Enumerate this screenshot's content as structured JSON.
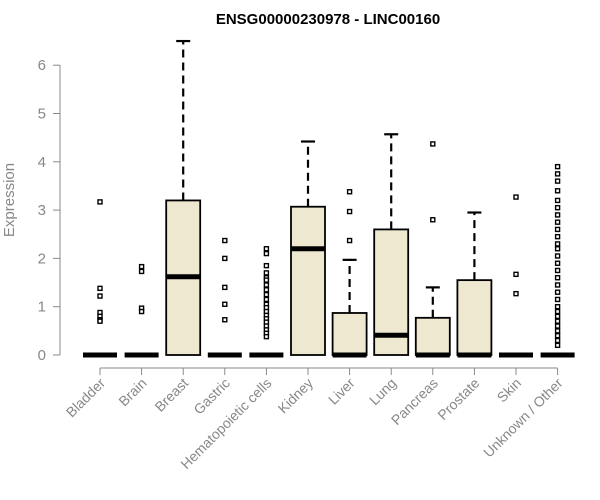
{
  "chart_data": {
    "type": "boxplot",
    "title": "ENSG00000230978 - LINC00160",
    "xlabel": "",
    "ylabel": "Expression",
    "ylim": [
      0,
      6.5
    ],
    "yticks": [
      0,
      1,
      2,
      3,
      4,
      5,
      6
    ],
    "grid": false,
    "box_fill": "#EFE8D0",
    "box_stroke": "#000000",
    "axis_color": "#888888",
    "categories": [
      "Bladder",
      "Brain",
      "Breast",
      "Gastric",
      "Hematopoietic cells",
      "Kidney",
      "Liver",
      "Lung",
      "Pancreas",
      "Prostate",
      "Skin",
      "Unknown / Other"
    ],
    "boxes": [
      {
        "category": "Bladder",
        "min": 0,
        "q1": 0,
        "median": 0,
        "q3": 0,
        "max": 0,
        "outliers": [
          3.17,
          1.38,
          1.22,
          0.88,
          0.8,
          0.73,
          0.7
        ]
      },
      {
        "category": "Brain",
        "min": 0,
        "q1": 0,
        "median": 0,
        "q3": 0,
        "max": 0,
        "outliers": [
          1.83,
          1.73,
          0.97,
          0.9
        ]
      },
      {
        "category": "Breast",
        "min": 0,
        "q1": 0,
        "median": 1.62,
        "q3": 3.2,
        "max": 6.5,
        "outliers": []
      },
      {
        "category": "Gastric",
        "min": 0,
        "q1": 0,
        "median": 0,
        "q3": 0,
        "max": 0,
        "outliers": [
          2.37,
          2.0,
          1.4,
          1.05,
          0.73
        ]
      },
      {
        "category": "Hematopoietic cells",
        "min": 0,
        "q1": 0,
        "median": 0,
        "q3": 0,
        "max": 0,
        "outliers": [
          2.2,
          2.1,
          1.85,
          1.7,
          1.6,
          1.55,
          1.45,
          1.35,
          1.25,
          1.15,
          1.05,
          0.98,
          0.9,
          0.82,
          0.75,
          0.68,
          0.6,
          0.52,
          0.45,
          0.38
        ]
      },
      {
        "category": "Kidney",
        "min": 0,
        "q1": 0,
        "median": 2.2,
        "q3": 3.07,
        "max": 4.42,
        "outliers": []
      },
      {
        "category": "Liver",
        "min": 0,
        "q1": 0,
        "median": 0,
        "q3": 0.87,
        "max": 1.97,
        "outliers": [
          3.38,
          2.97,
          2.37
        ]
      },
      {
        "category": "Lung",
        "min": 0,
        "q1": 0,
        "median": 0.41,
        "q3": 2.6,
        "max": 4.57,
        "outliers": []
      },
      {
        "category": "Pancreas",
        "min": 0,
        "q1": 0,
        "median": 0,
        "q3": 0.77,
        "max": 1.4,
        "outliers": [
          4.37,
          2.8
        ]
      },
      {
        "category": "Prostate",
        "min": 0,
        "q1": 0,
        "median": 0,
        "q3": 1.55,
        "max": 2.95,
        "outliers": []
      },
      {
        "category": "Skin",
        "min": 0,
        "q1": 0,
        "median": 0,
        "q3": 0,
        "max": 0,
        "outliers": [
          3.27,
          1.67,
          1.27
        ]
      },
      {
        "category": "Unknown / Other",
        "min": 0,
        "q1": 0,
        "median": 0,
        "q3": 0,
        "max": 0,
        "outliers": [
          3.9,
          3.75,
          3.6,
          3.4,
          3.2,
          3.05,
          2.9,
          2.75,
          2.6,
          2.45,
          2.3,
          2.2,
          2.05,
          1.9,
          1.75,
          1.6,
          1.45,
          1.3,
          1.15,
          1.0,
          0.9,
          0.8,
          0.7,
          0.6,
          0.5,
          0.4,
          0.3,
          0.2
        ]
      }
    ]
  }
}
